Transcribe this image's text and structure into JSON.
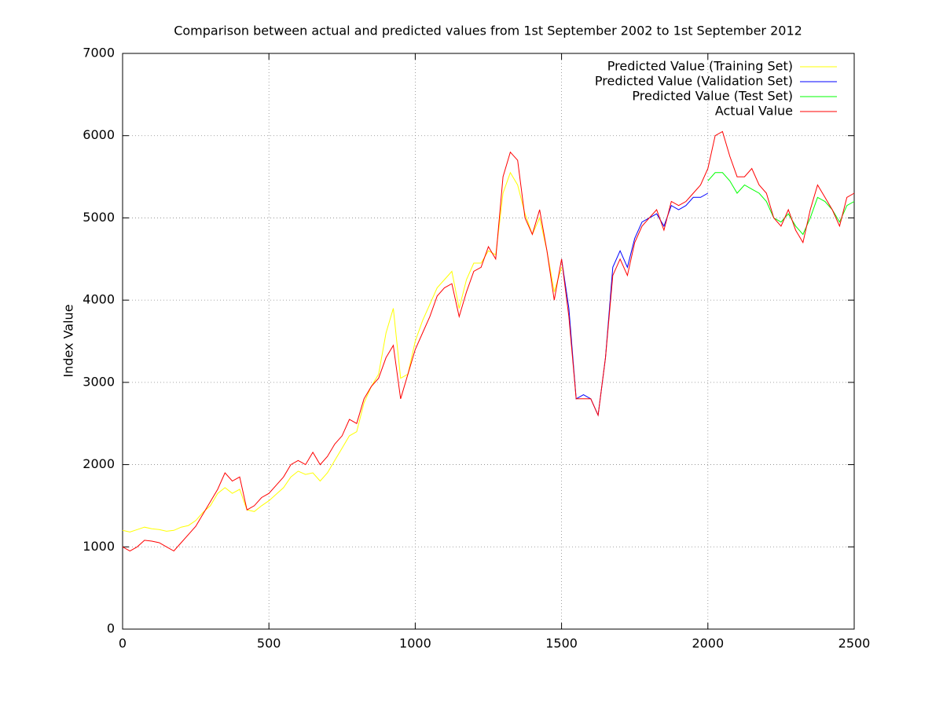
{
  "chart_data": {
    "type": "line",
    "title": "Comparison between actual and predicted values from 1st September 2002 to 1st September 2012",
    "y_label": "Index Value",
    "xlim": [
      0,
      2500
    ],
    "xticks": [
      0,
      500,
      1000,
      1500,
      2000,
      2500
    ],
    "ylim": [
      0,
      7000
    ],
    "yticks": [
      0,
      1000,
      2000,
      3000,
      4000,
      5000,
      6000,
      7000
    ],
    "grid": true,
    "legend": "top-right",
    "series": [
      {
        "name": "Predicted Value (Training Set)",
        "color": "#ffff00",
        "x": [
          0,
          25,
          50,
          75,
          100,
          125,
          150,
          175,
          200,
          225,
          250,
          275,
          300,
          325,
          350,
          375,
          400,
          425,
          450,
          475,
          500,
          525,
          550,
          575,
          600,
          625,
          650,
          675,
          700,
          725,
          750,
          775,
          800,
          825,
          850,
          875,
          900,
          925,
          950,
          975,
          1000,
          1025,
          1050,
          1075,
          1100,
          1125,
          1150,
          1175,
          1200,
          1225,
          1250,
          1275,
          1300,
          1325,
          1350,
          1375,
          1400,
          1425,
          1450,
          1475,
          1500
        ],
        "values": [
          1200,
          1180,
          1210,
          1240,
          1220,
          1210,
          1190,
          1200,
          1240,
          1260,
          1320,
          1420,
          1500,
          1650,
          1720,
          1650,
          1700,
          1450,
          1430,
          1500,
          1560,
          1640,
          1720,
          1850,
          1920,
          1880,
          1900,
          1800,
          1900,
          2050,
          2200,
          2350,
          2400,
          2750,
          2950,
          3100,
          3600,
          3900,
          3050,
          3100,
          3500,
          3750,
          3950,
          4150,
          4250,
          4350,
          3900,
          4250,
          4450,
          4450,
          4600,
          4550,
          5300,
          5550,
          5400,
          5050,
          4800,
          5000,
          4600,
          4100,
          4400
        ]
      },
      {
        "name": "Predicted Value (Validation Set)",
        "color": "#0000ff",
        "x": [
          1500,
          1525,
          1550,
          1575,
          1600,
          1625,
          1650,
          1675,
          1700,
          1725,
          1750,
          1775,
          1800,
          1825,
          1850,
          1875,
          1900,
          1925,
          1950,
          1975,
          2000
        ],
        "values": [
          4500,
          3900,
          2800,
          2850,
          2800,
          2600,
          3300,
          4400,
          4600,
          4400,
          4750,
          4950,
          5000,
          5050,
          4900,
          5150,
          5100,
          5150,
          5250,
          5250,
          5300
        ]
      },
      {
        "name": "Predicted Value (Test Set)",
        "color": "#00ff00",
        "x": [
          2000,
          2025,
          2050,
          2075,
          2100,
          2125,
          2150,
          2175,
          2200,
          2225,
          2250,
          2275,
          2300,
          2325,
          2350,
          2375,
          2400,
          2425,
          2450,
          2475,
          2500
        ],
        "values": [
          5450,
          5550,
          5550,
          5450,
          5300,
          5400,
          5350,
          5300,
          5200,
          5000,
          4950,
          5050,
          4900,
          4800,
          5000,
          5250,
          5200,
          5100,
          4950,
          5150,
          5200
        ]
      },
      {
        "name": "Actual Value",
        "color": "#ff0000",
        "x": [
          0,
          25,
          50,
          75,
          100,
          125,
          150,
          175,
          200,
          225,
          250,
          275,
          300,
          325,
          350,
          375,
          400,
          425,
          450,
          475,
          500,
          525,
          550,
          575,
          600,
          625,
          650,
          675,
          700,
          725,
          750,
          775,
          800,
          825,
          850,
          875,
          900,
          925,
          950,
          975,
          1000,
          1025,
          1050,
          1075,
          1100,
          1125,
          1150,
          1175,
          1200,
          1225,
          1250,
          1275,
          1300,
          1325,
          1350,
          1375,
          1400,
          1425,
          1450,
          1475,
          1500,
          1525,
          1550,
          1575,
          1600,
          1625,
          1650,
          1675,
          1700,
          1725,
          1750,
          1775,
          1800,
          1825,
          1850,
          1875,
          1900,
          1925,
          1950,
          1975,
          2000,
          2025,
          2050,
          2075,
          2100,
          2125,
          2150,
          2175,
          2200,
          2225,
          2250,
          2275,
          2300,
          2325,
          2350,
          2375,
          2400,
          2425,
          2450,
          2475,
          2500
        ],
        "values": [
          1000,
          950,
          1000,
          1080,
          1070,
          1050,
          1000,
          950,
          1050,
          1150,
          1250,
          1400,
          1550,
          1700,
          1900,
          1800,
          1850,
          1450,
          1500,
          1600,
          1650,
          1750,
          1850,
          2000,
          2050,
          2000,
          2150,
          2000,
          2100,
          2250,
          2350,
          2550,
          2500,
          2800,
          2950,
          3050,
          3300,
          3450,
          2800,
          3100,
          3400,
          3600,
          3800,
          4050,
          4150,
          4200,
          3800,
          4100,
          4350,
          4400,
          4650,
          4500,
          5500,
          5800,
          5700,
          5000,
          4800,
          5100,
          4600,
          4000,
          4500,
          3800,
          2800,
          2800,
          2800,
          2600,
          3300,
          4300,
          4500,
          4300,
          4700,
          4900,
          5000,
          5100,
          4850,
          5200,
          5150,
          5200,
          5300,
          5400,
          5600,
          6000,
          6050,
          5750,
          5500,
          5500,
          5600,
          5400,
          5300,
          5000,
          4900,
          5100,
          4850,
          4700,
          5100,
          5400,
          5250,
          5100,
          4900,
          5250,
          5300
        ]
      }
    ]
  }
}
